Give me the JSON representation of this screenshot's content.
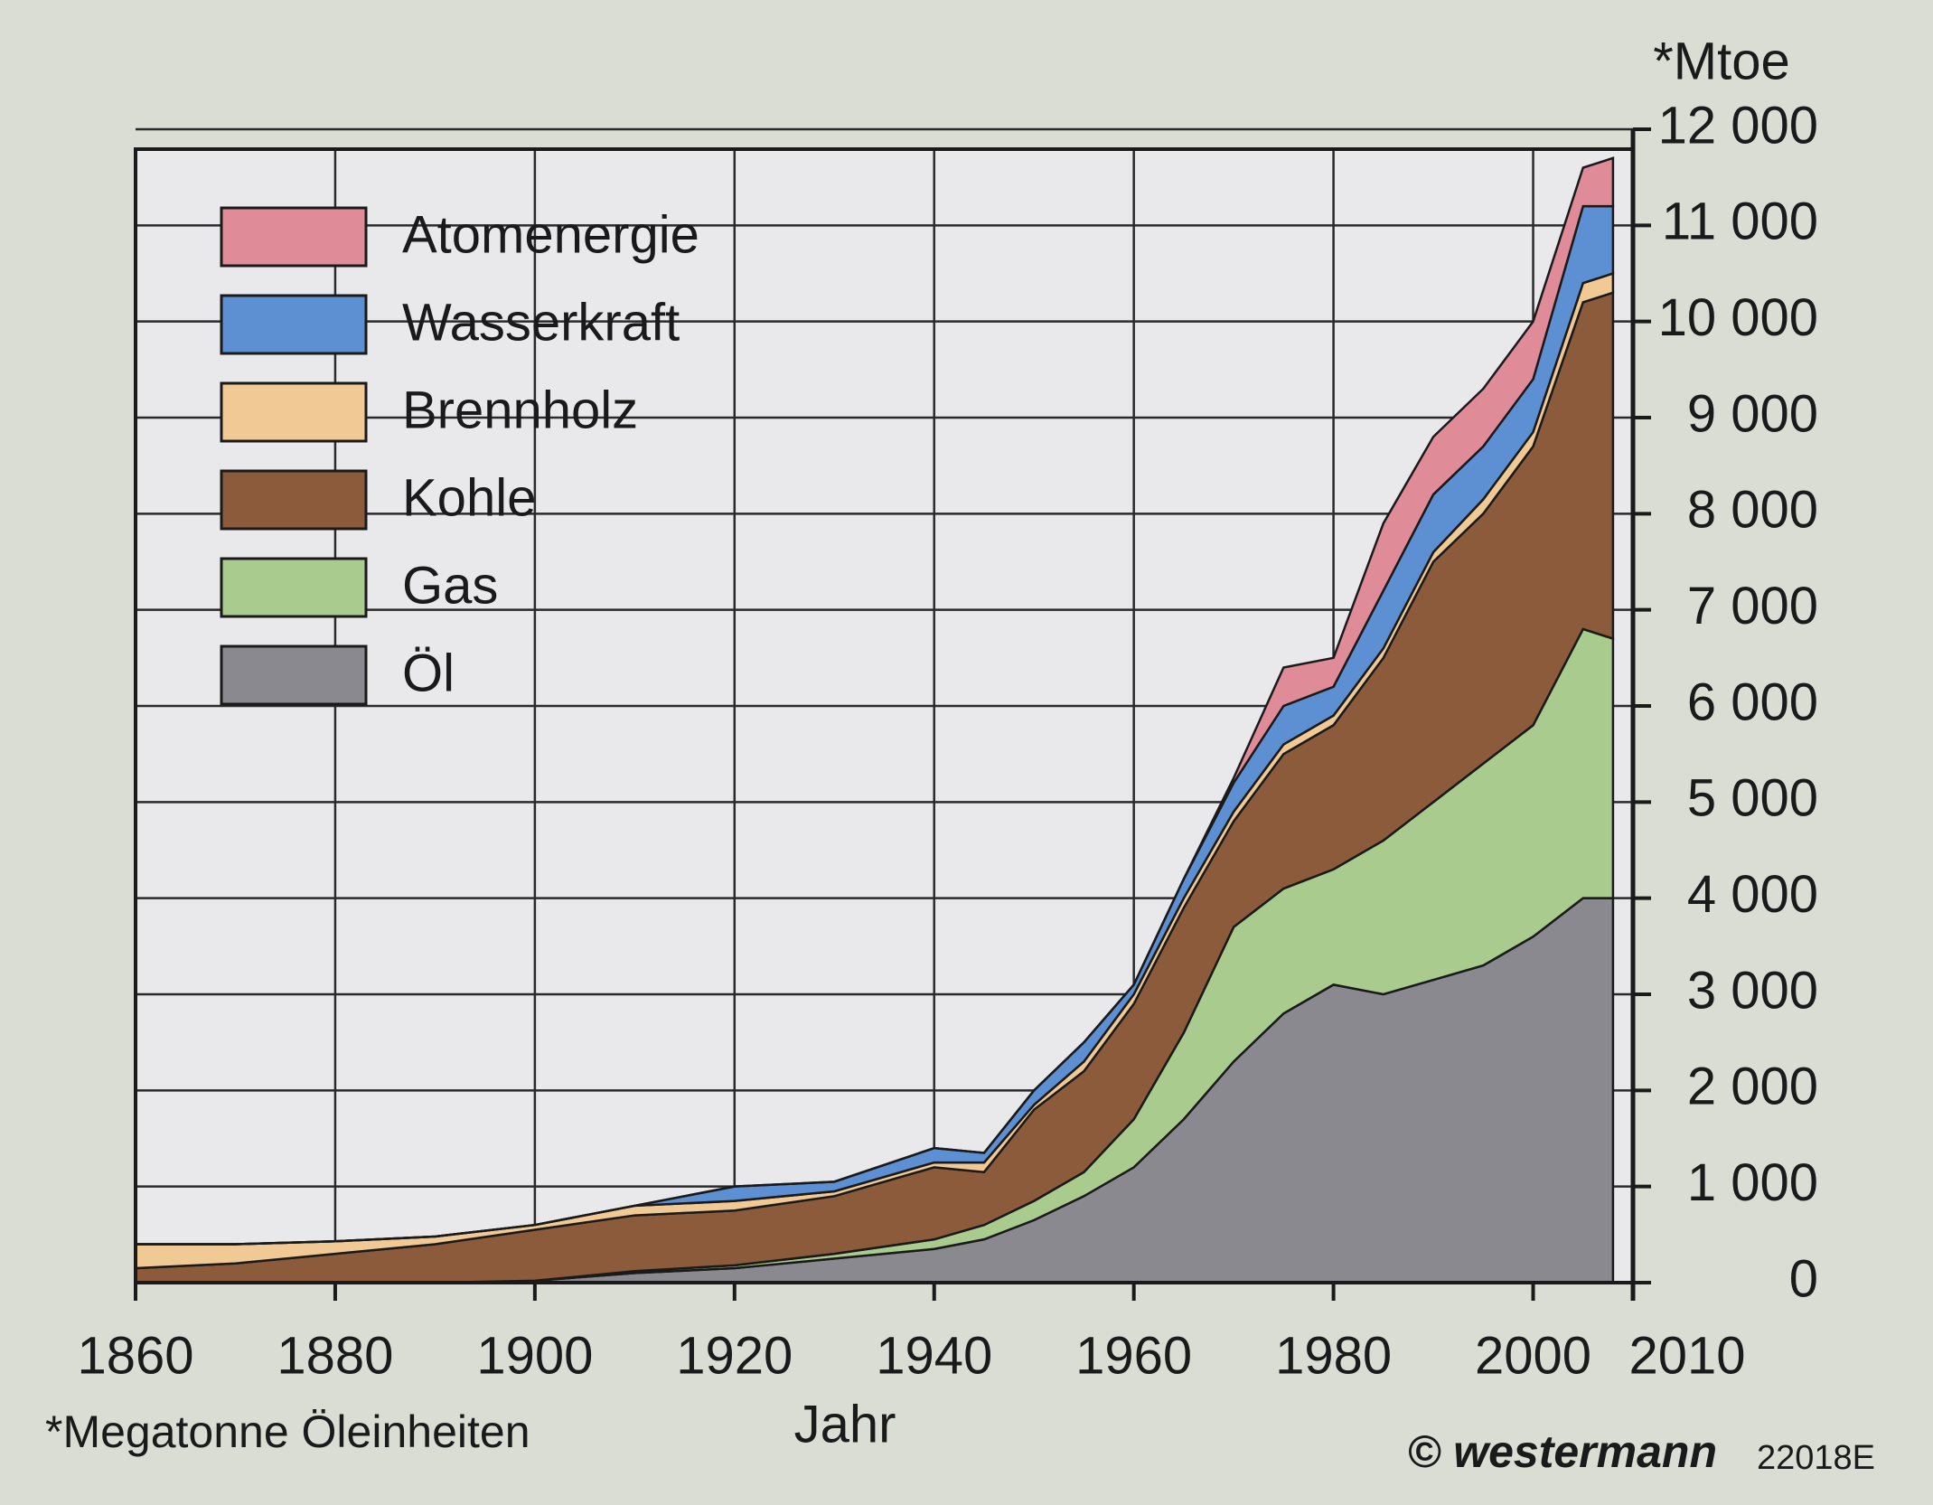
{
  "chart_data": {
    "type": "stacked_area",
    "ylabel": "*Mtoe",
    "xlabel": "Jahr",
    "footnote": "*Megatonne Öleinheiten",
    "credit": "© westermann",
    "code": "22018E",
    "x": [
      1860,
      1870,
      1880,
      1890,
      1900,
      1910,
      1920,
      1930,
      1940,
      1945,
      1950,
      1955,
      1960,
      1965,
      1970,
      1975,
      1980,
      1985,
      1990,
      1995,
      2000,
      2005,
      2008
    ],
    "series": [
      {
        "name": "Öl",
        "color": "#8b8990",
        "values": [
          0,
          0,
          0,
          0,
          20,
          100,
          150,
          250,
          350,
          450,
          650,
          900,
          1200,
          1700,
          2300,
          2800,
          3100,
          3000,
          3150,
          3300,
          3600,
          4000,
          4000
        ]
      },
      {
        "name": "Gas",
        "color": "#a9cc8e",
        "values": [
          0,
          0,
          0,
          0,
          0,
          20,
          30,
          50,
          100,
          150,
          200,
          250,
          500,
          900,
          1400,
          1300,
          1200,
          1600,
          1850,
          2100,
          2200,
          2800,
          2700
        ]
      },
      {
        "name": "Kohle",
        "color": "#8b5b3b",
        "values": [
          150,
          200,
          300,
          400,
          530,
          580,
          570,
          600,
          750,
          550,
          950,
          1050,
          1200,
          1300,
          1100,
          1400,
          1500,
          1900,
          2500,
          2600,
          2900,
          3400,
          3600
        ]
      },
      {
        "name": "Brennholz",
        "color": "#f0c994",
        "values": [
          250,
          200,
          130,
          80,
          50,
          100,
          100,
          50,
          50,
          100,
          50,
          100,
          100,
          100,
          100,
          100,
          100,
          100,
          100,
          150,
          150,
          200,
          200
        ]
      },
      {
        "name": "Wasserkraft",
        "color": "#5d8fd3",
        "values": [
          0,
          0,
          0,
          0,
          0,
          0,
          150,
          100,
          150,
          100,
          150,
          200,
          100,
          200,
          300,
          400,
          300,
          600,
          600,
          550,
          550,
          800,
          700
        ]
      },
      {
        "name": "Atomenergie",
        "color": "#e08b98",
        "values": [
          0,
          0,
          0,
          0,
          0,
          0,
          0,
          0,
          0,
          0,
          0,
          0,
          0,
          0,
          50,
          400,
          300,
          700,
          600,
          600,
          600,
          400,
          500
        ]
      }
    ],
    "xlim": [
      1860,
      2010
    ],
    "xticks": [
      1860,
      1880,
      1900,
      1920,
      1940,
      1960,
      1980,
      2000,
      2010
    ],
    "ylim": [
      0,
      12000
    ],
    "yticks": [
      0,
      {
        "value": 1000,
        "label": "1 000"
      },
      {
        "value": 2000,
        "label": "2 000"
      },
      {
        "value": 3000,
        "label": "3 000"
      },
      {
        "value": 4000,
        "label": "4 000"
      },
      {
        "value": 5000,
        "label": "5 000"
      },
      {
        "value": 6000,
        "label": "6 000"
      },
      {
        "value": 7000,
        "label": "7 000"
      },
      {
        "value": 8000,
        "label": "8 000"
      },
      {
        "value": 9000,
        "label": "9 000"
      },
      {
        "value": 10000,
        "label": "10 000"
      },
      {
        "value": 11000,
        "label": "11 000"
      },
      {
        "value": 12000,
        "label": "12 000"
      }
    ],
    "grid": true,
    "legend": "upper left"
  }
}
